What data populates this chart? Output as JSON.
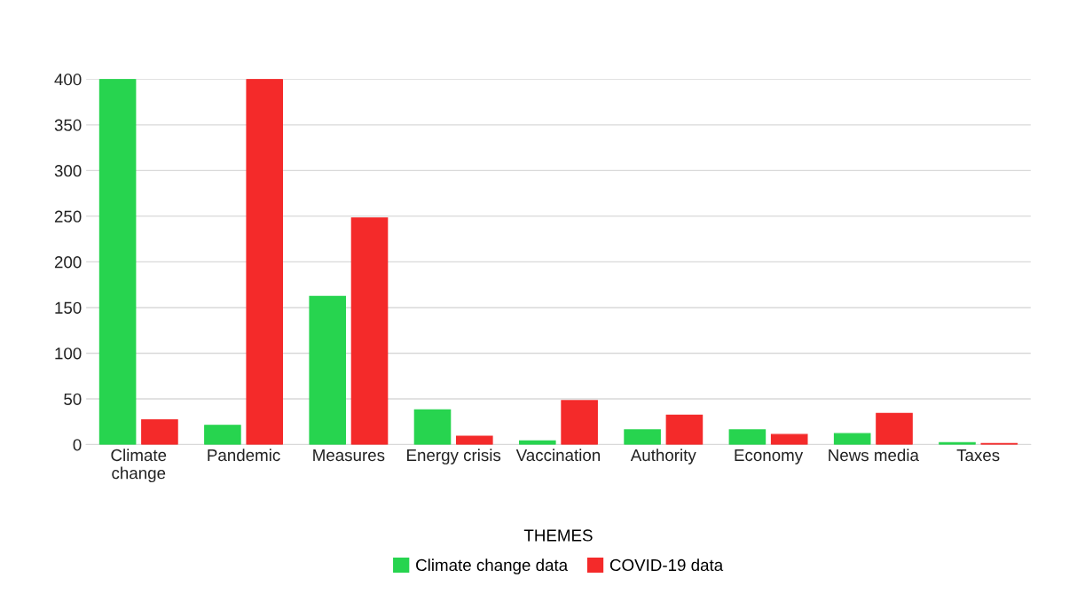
{
  "chart_data": {
    "type": "bar",
    "xlabel": "THEMES",
    "categories": [
      "Climate\nchange",
      "Pandemic",
      "Measures",
      "Energy crisis",
      "Vaccination",
      "Authority",
      "Economy",
      "News media",
      "Taxes"
    ],
    "series": [
      {
        "name": "Climate change data",
        "color": "#27d44f",
        "values": [
          400,
          21,
          162,
          38,
          4,
          16,
          16,
          12,
          2
        ]
      },
      {
        "name": "COVID-19 data",
        "color": "#f42a2a",
        "values": [
          27,
          400,
          248,
          9,
          48,
          32,
          11,
          34,
          1
        ]
      }
    ],
    "ylim": [
      0,
      400
    ],
    "yticks": [
      0,
      50,
      100,
      150,
      200,
      250,
      300,
      350,
      400
    ],
    "grid": "y",
    "legend": "bottom"
  }
}
